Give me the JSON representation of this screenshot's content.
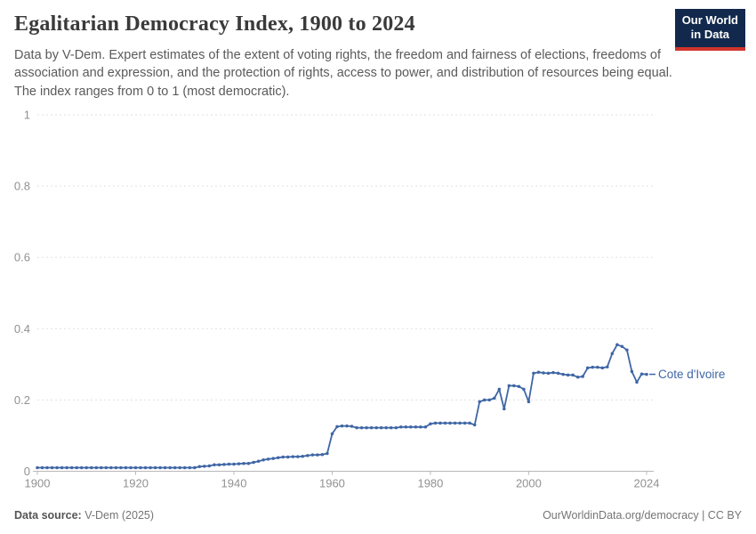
{
  "header": {
    "title": "Egalitarian Democracy Index, 1900 to 2024",
    "subtitle": "Data by V-Dem. Expert estimates of the extent of voting rights, the freedom and fairness of elections, freedoms of association and expression, and the protection of rights, access to power, and distribution of resources being equal. The index ranges from 0 to 1 (most democratic)."
  },
  "logo": {
    "line1": "Our World",
    "line2": "in Data",
    "bg_color": "#12294d",
    "accent_color": "#d0342c"
  },
  "chart_data": {
    "type": "line",
    "title": "Egalitarian Democracy Index, 1900 to 2024",
    "xlabel": "",
    "ylabel": "",
    "x_range": [
      1900,
      2024
    ],
    "y_range": [
      0,
      1
    ],
    "x_ticks": [
      1900,
      1920,
      1940,
      1960,
      1980,
      2000,
      2024
    ],
    "y_ticks": [
      0,
      0.2,
      0.4,
      0.6,
      0.8,
      1
    ],
    "grid": "horizontal-dashed",
    "legend_position": "end-of-line-label",
    "colors": {
      "grid": "#e0e0e0",
      "axis": "#b8b8b8",
      "tick_text": "#919191"
    },
    "series": [
      {
        "name": "Cote d'Ivoire",
        "color": "#3f66a5",
        "start_year": 1900,
        "values": [
          0.01,
          0.01,
          0.01,
          0.01,
          0.01,
          0.01,
          0.01,
          0.01,
          0.01,
          0.01,
          0.01,
          0.01,
          0.01,
          0.01,
          0.01,
          0.01,
          0.01,
          0.01,
          0.01,
          0.01,
          0.01,
          0.01,
          0.01,
          0.01,
          0.01,
          0.01,
          0.01,
          0.01,
          0.01,
          0.01,
          0.01,
          0.01,
          0.01,
          0.013,
          0.014,
          0.015,
          0.018,
          0.018,
          0.019,
          0.02,
          0.02,
          0.021,
          0.022,
          0.022,
          0.025,
          0.028,
          0.032,
          0.034,
          0.036,
          0.038,
          0.04,
          0.04,
          0.041,
          0.041,
          0.042,
          0.044,
          0.046,
          0.046,
          0.047,
          0.05,
          0.105,
          0.125,
          0.127,
          0.127,
          0.126,
          0.122,
          0.122,
          0.122,
          0.122,
          0.122,
          0.122,
          0.122,
          0.122,
          0.122,
          0.124,
          0.124,
          0.124,
          0.124,
          0.124,
          0.124,
          0.133,
          0.135,
          0.135,
          0.135,
          0.135,
          0.135,
          0.135,
          0.135,
          0.135,
          0.13,
          0.195,
          0.2,
          0.2,
          0.205,
          0.23,
          0.175,
          0.24,
          0.24,
          0.238,
          0.23,
          0.195,
          0.275,
          0.278,
          0.276,
          0.275,
          0.277,
          0.275,
          0.272,
          0.27,
          0.27,
          0.264,
          0.266,
          0.29,
          0.292,
          0.292,
          0.29,
          0.293,
          0.33,
          0.355,
          0.35,
          0.34,
          0.28,
          0.25,
          0.273,
          0.272
        ]
      }
    ]
  },
  "footer": {
    "source_label": "Data source:",
    "source_value": " V-Dem (2025)",
    "right_text": "OurWorldinData.org/democracy | CC BY"
  }
}
